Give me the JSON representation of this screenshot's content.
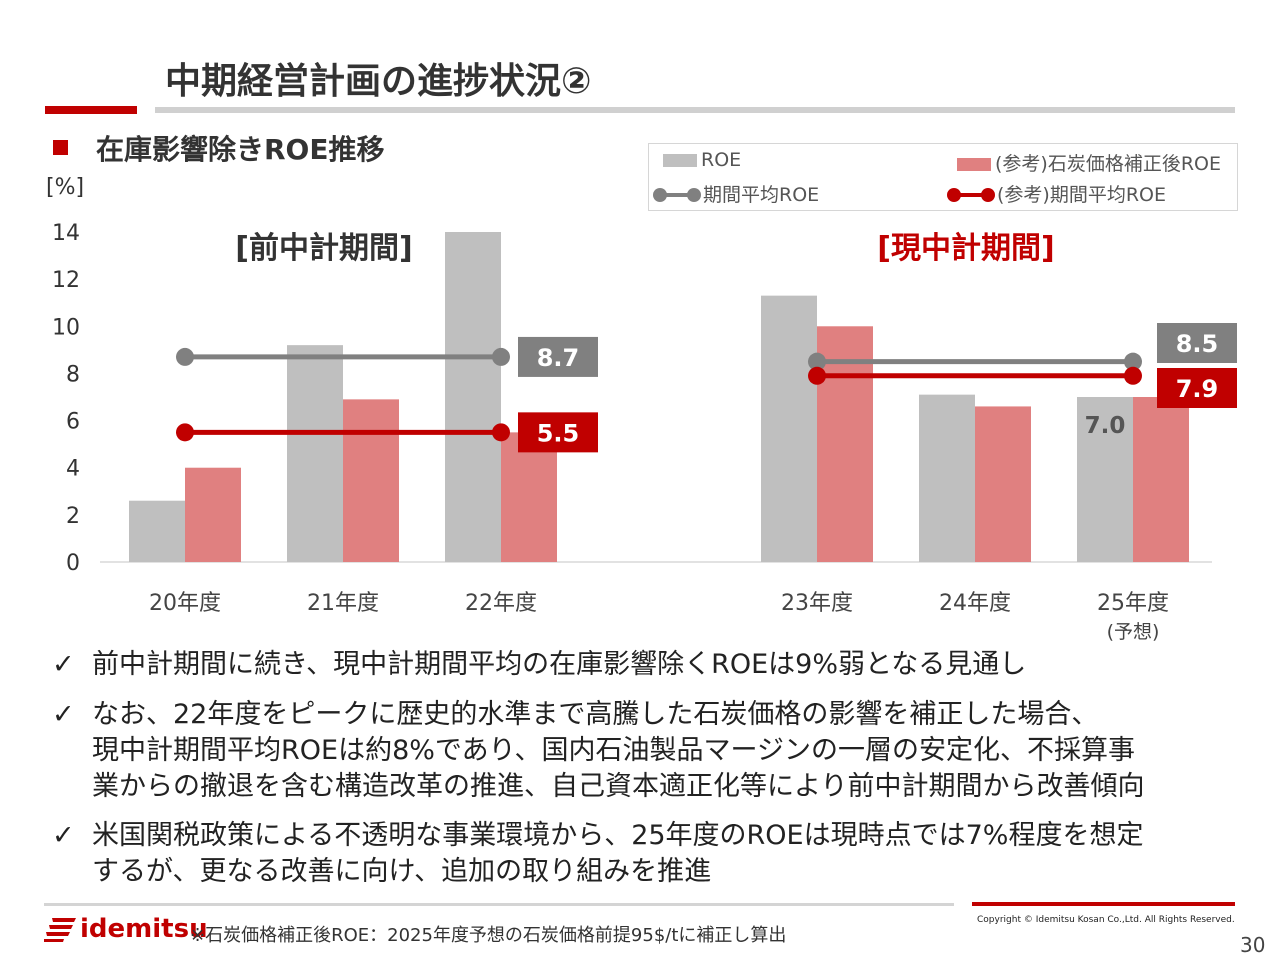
{
  "slide": {
    "title": "中期経営計画の進捗状況②",
    "subtitle": "在庫影響除きROE推移",
    "page_number": "30"
  },
  "legend": {
    "items": [
      {
        "label": "ROE",
        "kind": "bar",
        "color": "#bfbfbf"
      },
      {
        "label": "(参考)石炭価格補正後ROE",
        "kind": "bar",
        "color": "#e08080"
      },
      {
        "label": "期間平均ROE",
        "kind": "line",
        "color": "#808080"
      },
      {
        "label": "(参考)期間平均ROE",
        "kind": "line",
        "color": "#c00000"
      }
    ]
  },
  "chart_data": {
    "type": "bar",
    "ylabel": "[%]",
    "ylim": [
      0,
      14
    ],
    "yticks": [
      0,
      2,
      4,
      6,
      8,
      10,
      12,
      14
    ],
    "categories": [
      "20年度",
      "21年度",
      "22年度",
      "23年度",
      "24年度",
      "25年度"
    ],
    "category_note": {
      "25年度": "(予想)"
    },
    "series": [
      {
        "name": "ROE",
        "color": "#bfbfbf",
        "values": [
          2.6,
          9.2,
          14.0,
          11.3,
          7.1,
          7.0
        ]
      },
      {
        "name": "(参考)石炭価格補正後ROE",
        "color": "#e08080",
        "values": [
          4.0,
          6.9,
          5.5,
          10.0,
          6.6,
          7.0
        ]
      }
    ],
    "period_averages": [
      {
        "period": "[前中計期間]",
        "period_color": "#333333",
        "from": "20年度",
        "to": "22年度",
        "roe_avg": 8.7,
        "ref_avg": 5.5,
        "roe_avg_label": "8.7",
        "ref_avg_label": "5.5"
      },
      {
        "period": "[現中計期間]",
        "period_color": "#c00000",
        "from": "23年度",
        "to": "25年度",
        "roe_avg": 8.5,
        "ref_avg": 7.9,
        "roe_avg_label": "8.5",
        "ref_avg_label": "7.9"
      }
    ],
    "data_labels": [
      {
        "category": "25年度",
        "series": "ROE",
        "text": "7.0"
      }
    ],
    "colors": {
      "avg_roe": "#808080",
      "avg_ref": "#c00000",
      "axis": "#d9d9d9"
    }
  },
  "bullets": [
    {
      "mark": "✓",
      "lines": [
        "前中計期間に続き、現中計期間平均の在庫影響除くROEは9%弱となる見通し"
      ]
    },
    {
      "mark": "✓",
      "lines": [
        "なお、22年度をピークに歴史的水準まで高騰した石炭価格の影響を補正した場合、",
        "現中計期間平均ROEは約8%であり、国内石油製品マージンの一層の安定化、不採算事",
        "業からの撤退を含む構造改革の推進、自己資本適正化等により前中計期間から改善傾向"
      ]
    },
    {
      "mark": "✓",
      "lines": [
        "米国関税政策による不透明な事業環境から、25年度のROEは現時点では7%程度を想定",
        "するが、更なる改善に向け、追加の取り組みを推進"
      ]
    }
  ],
  "footer": {
    "logo_text": "idemitsu",
    "footnote": "※石炭価格補正後ROE：2025年度予想の石炭価格前提95$/tに補正し算出",
    "copyright": "Copyright © Idemitsu Kosan Co.,Ltd.  All Rights Reserved."
  }
}
